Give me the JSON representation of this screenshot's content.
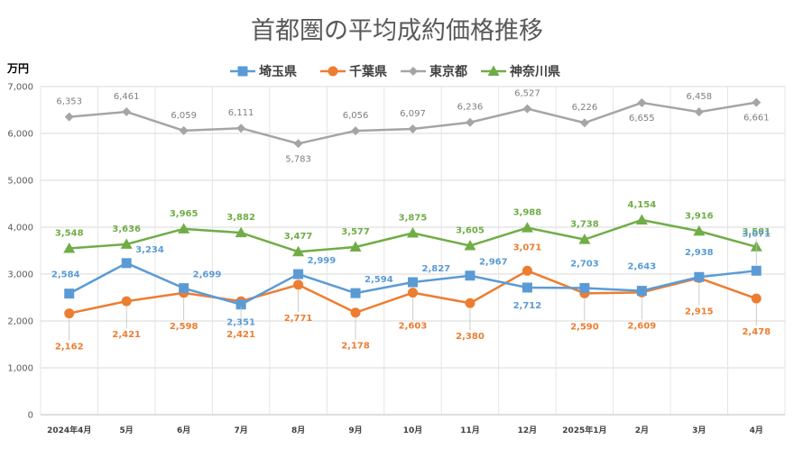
{
  "chart_data": {
    "type": "line",
    "title": "首都圏の平均成約価格推移",
    "ylabel": "万円",
    "ylim": [
      0,
      7000
    ],
    "y_ticks": [
      "0",
      "1,000",
      "2,000",
      "3,000",
      "4,000",
      "5,000",
      "6,000",
      "7,000"
    ],
    "categories": [
      "2024年4月",
      "5月",
      "6月",
      "7月",
      "8月",
      "9月",
      "10月",
      "11月",
      "12月",
      "2025年1月",
      "2月",
      "3月",
      "4月"
    ],
    "legend_position": "top",
    "grid": true,
    "series": [
      {
        "name": "埼玉県",
        "color": "#5b9bd5",
        "marker": "square",
        "values": [
          2584,
          3234,
          2699,
          2351,
          2999,
          2594,
          2827,
          2967,
          2712,
          2703,
          2643,
          2938,
          3071
        ],
        "labels": [
          "2,584",
          "3,234",
          "2,699",
          "2,351",
          "2,999",
          "2,594",
          "2,827",
          "2,967",
          "2,712",
          "2,703",
          "2,643",
          "2,938",
          "3,071"
        ]
      },
      {
        "name": "千葉県",
        "color": "#ed7d31",
        "marker": "circle",
        "values": [
          2162,
          2421,
          2598,
          2421,
          2771,
          2178,
          2603,
          2380,
          3071,
          2590,
          2609,
          2915,
          2478
        ],
        "labels": [
          "2,162",
          "2,421",
          "2,598",
          "2,421",
          "2,771",
          "2,178",
          "2,603",
          "2,380",
          "3,071",
          "2,590",
          "2,609",
          "2,915",
          "2,478"
        ]
      },
      {
        "name": "東京都",
        "color": "#a5a5a5",
        "marker": "diamond",
        "values": [
          6353,
          6461,
          6059,
          6111,
          5783,
          6056,
          6097,
          6236,
          6527,
          6226,
          6655,
          6458,
          6661
        ],
        "labels": [
          "6,353",
          "6,461",
          "6,059",
          "6,111",
          "5,783",
          "6,056",
          "6,097",
          "6,236",
          "6,527",
          "6,226",
          "6,655",
          "6,458",
          "6,661"
        ]
      },
      {
        "name": "神奈川県",
        "color": "#70ad47",
        "marker": "triangle",
        "values": [
          3548,
          3636,
          3965,
          3882,
          3477,
          3577,
          3875,
          3605,
          3988,
          3738,
          4154,
          3916,
          3581
        ],
        "labels": [
          "3,548",
          "3,636",
          "3,965",
          "3,882",
          "3,477",
          "3,577",
          "3,875",
          "3,605",
          "3,988",
          "3,738",
          "4,154",
          "3,916",
          "3,581"
        ]
      }
    ]
  }
}
